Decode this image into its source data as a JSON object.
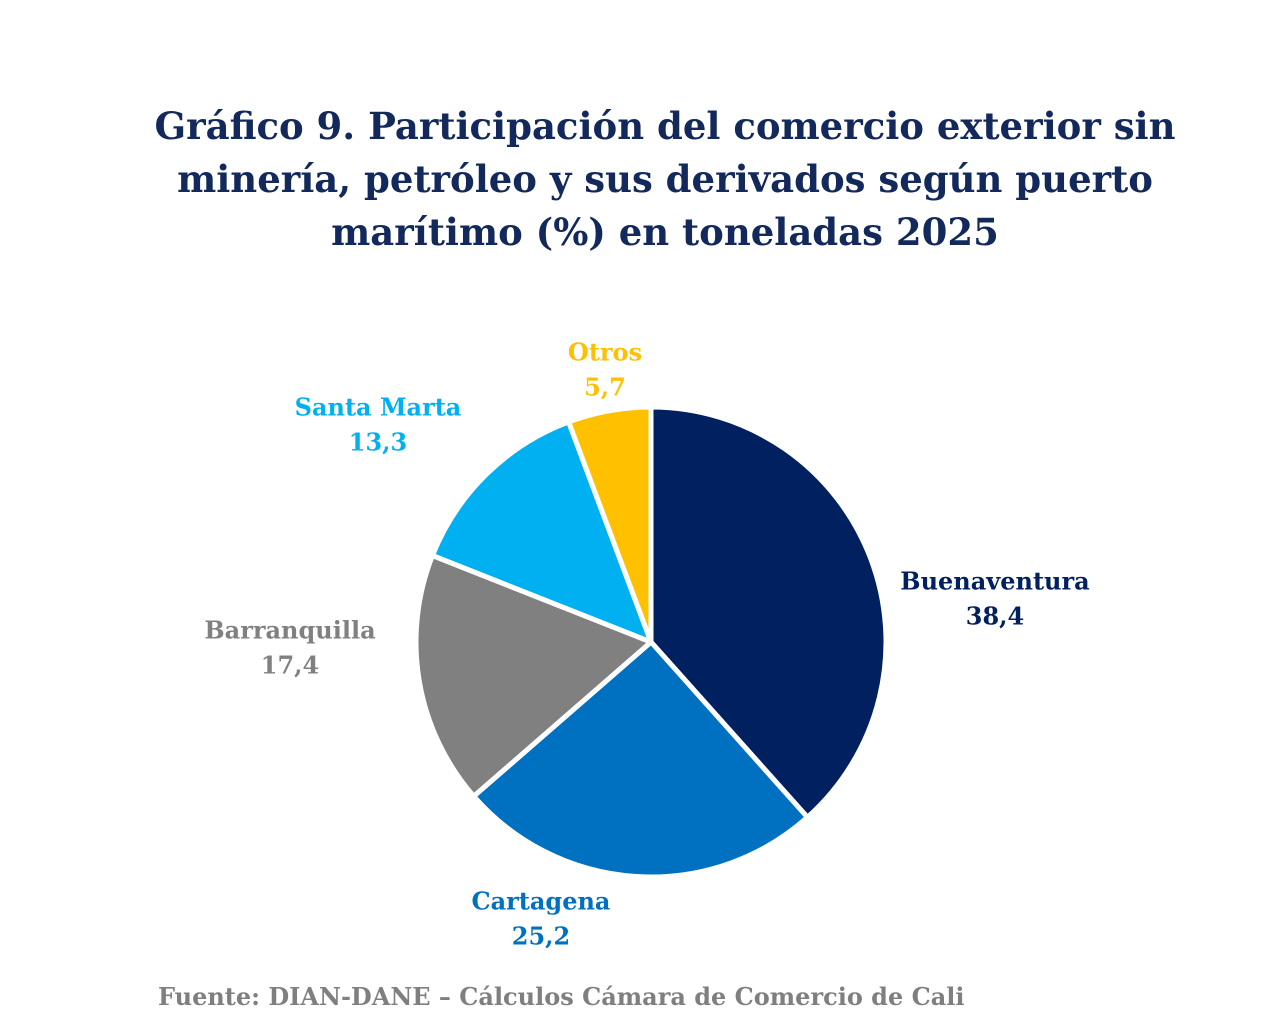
{
  "chart_data": {
    "type": "pie",
    "title": "Gráfico 9. Participación del comercio exterior sin minería, petróleo y sus derivados según puerto marítimo (%) en toneladas 2025",
    "categories": [
      "Buenaventura",
      "Cartagena",
      "Barranquilla",
      "Santa Marta",
      "Otros"
    ],
    "values": [
      38.4,
      25.2,
      17.4,
      13.3,
      5.7
    ],
    "value_labels": [
      "38,4",
      "25,2",
      "17,4",
      "13,3",
      "5,7"
    ],
    "colors": [
      "#002060",
      "#0070c0",
      "#808080",
      "#00b0f0",
      "#ffc000"
    ],
    "source": "Fuente: DIAN-DANE – Cálculos Cámara de Comercio de Cali"
  }
}
